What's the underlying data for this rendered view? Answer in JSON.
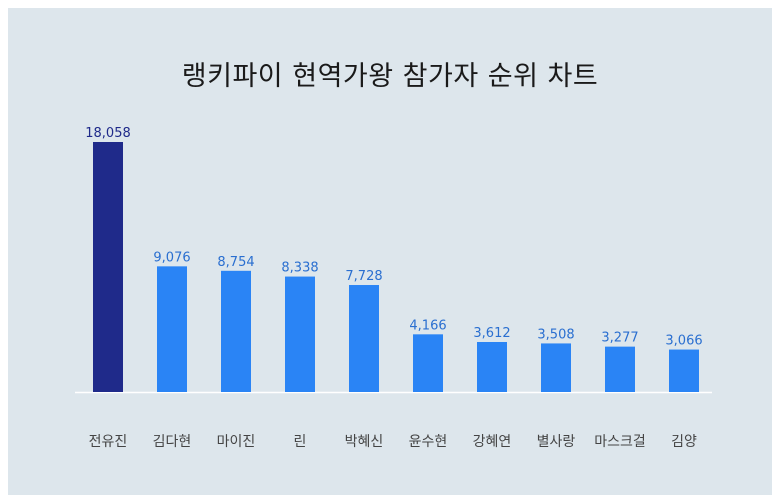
{
  "chart_data": {
    "type": "bar",
    "title": "랭키파이 현역가왕 참가자 순위 차트",
    "categories": [
      "전유진",
      "김다현",
      "마이진",
      "린",
      "박혜신",
      "윤수현",
      "강혜연",
      "별사랑",
      "마스크걸",
      "김양"
    ],
    "values": [
      18058,
      9076,
      8754,
      8338,
      7728,
      4166,
      3612,
      3508,
      3277,
      3066
    ],
    "value_labels": [
      "18,058",
      "9,076",
      "8,754",
      "8,338",
      "7,728",
      "4,166",
      "3,612",
      "3,508",
      "3,277",
      "3,066"
    ],
    "ylim": [
      0,
      18058
    ],
    "grid": false,
    "colors": {
      "highlight_bar": "#1f2a8a",
      "bar": "#2a84f5",
      "highlight_label": "#1f2a8a",
      "label": "#2a6fd0",
      "baseline": "#ffffff"
    }
  }
}
